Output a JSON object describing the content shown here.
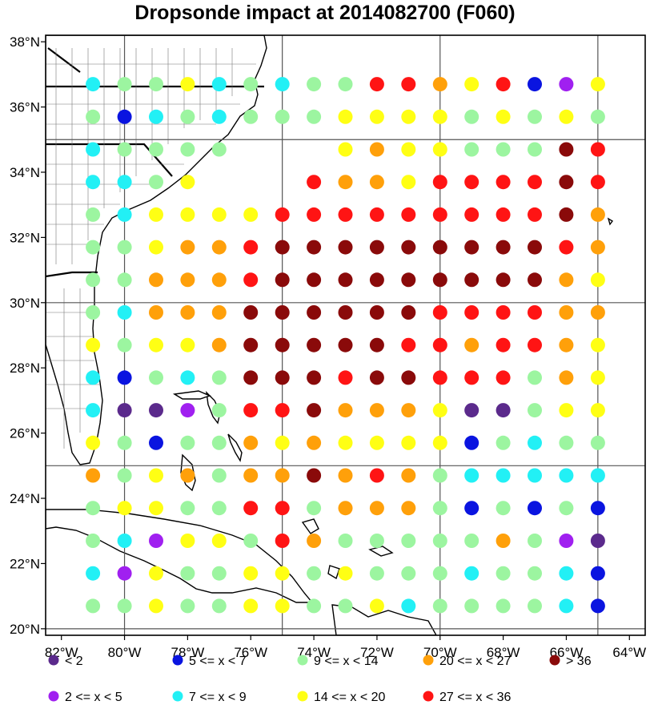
{
  "title": "Dropsonde impact at 2014082700 (F060)",
  "colors": {
    "lt2": "#5b2a8c",
    "2to5": "#a020f0",
    "5to7": "#0a14e0",
    "7to9": "#22f0f5",
    "9to14": "#9cf5a0",
    "14to20": "#ffff14",
    "20to27": "#ffa00a",
    "27to36": "#ff1414",
    "gt36": "#8a0a0a"
  },
  "legend": [
    {
      "key": "lt2",
      "label": "<  2"
    },
    {
      "key": "5to7",
      "label": "5 <= x <  7"
    },
    {
      "key": "9to14",
      "label": "9 <= x < 14"
    },
    {
      "key": "20to27",
      "label": "20 <= x < 27"
    },
    {
      "key": "gt36",
      "label": "> 36"
    },
    {
      "key": "2to5",
      "label": "2 <= x <  5"
    },
    {
      "key": "7to9",
      "label": "7 <= x <  9"
    },
    {
      "key": "14to20",
      "label": "14 <= x < 20"
    },
    {
      "key": "27to36",
      "label": "27 <= x < 36"
    }
  ],
  "axes": {
    "x_ticks": [
      "82°W",
      "80°W",
      "78°W",
      "76°W",
      "74°W",
      "72°W",
      "70°W",
      "68°W",
      "66°W",
      "64°W"
    ],
    "y_ticks": [
      "20°N",
      "22°N",
      "24°N",
      "26°N",
      "28°N",
      "30°N",
      "32°N",
      "34°N",
      "36°N",
      "38°N"
    ]
  },
  "chart_data": {
    "type": "scatter",
    "title": "Dropsonde impact at 2014082700 (F060)",
    "xlabel": "",
    "ylabel": "",
    "xlim": [
      -82.5,
      -63.5
    ],
    "ylim": [
      19.8,
      38.2
    ],
    "grid_lon": [
      -80,
      -75,
      -70,
      -65
    ],
    "grid_lat": [
      20,
      25,
      30,
      35
    ],
    "lon_start": -81,
    "lon_step": 1,
    "n_lon": 17,
    "lat_start": 36.7,
    "lat_step": -1,
    "n_lat": 17,
    "color_codes": {
      "1": "lt2",
      "2": "2to5",
      "3": "5to7",
      "4": "7to9",
      "5": "9to14",
      "6": "14to20",
      "7": "20to27",
      "8": "27to36",
      "9": "gt36"
    },
    "rows": [
      "45564545588768326",
      "53454555666656565",
      "45555000676655598",
      "44560008776888898",
      "54666688888888897",
      "55677899999999987",
      "55777899999999976",
      "54777999999888877",
      "65667999998878876",
      "43545999899888576",
      "41125889777611566",
      "65355767666635455",
      "75675779787544444",
      "56655885777535353",
      "54266587555557521",
      "42655665655545543",
      "55655665564555543"
    ]
  }
}
